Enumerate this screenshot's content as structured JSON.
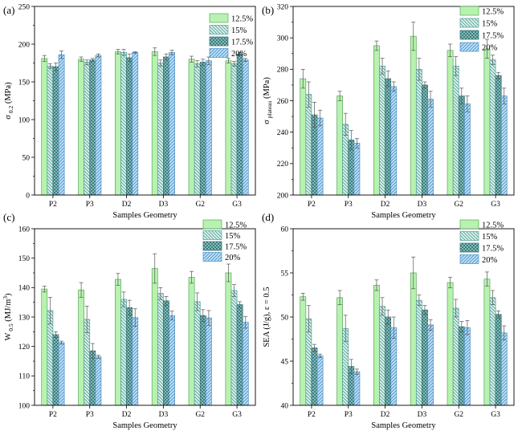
{
  "figure": {
    "fill_colors": [
      "#b8f2b0",
      "#dff2ea",
      "#9ccfcf",
      "#bfe2f8"
    ],
    "hatch_colors": [
      "#5aa65a",
      "#4f9f9a",
      "#2f6f6f",
      "#4c8fc5"
    ],
    "xlabel": "Samples Geometry",
    "legend_labels": [
      "12.5%",
      "15%",
      "17.5%",
      "20%"
    ]
  },
  "chart_data": [
    {
      "type": "bar",
      "panel": "(a)",
      "ylabel_main": "σ",
      "ylabel_sub": "0.2",
      "ylabel_tail": " (MPa)",
      "categories": [
        "P2",
        "P3",
        "D2",
        "D3",
        "G2",
        "G3"
      ],
      "ylim": [
        0,
        250
      ],
      "yticks": [
        0,
        50,
        100,
        150,
        200,
        250
      ],
      "legend_position": "top-right",
      "series": [
        {
          "name": "12.5%",
          "values": [
            181,
            180,
            190,
            190,
            180,
            178
          ],
          "errors": [
            4,
            3,
            3,
            5,
            4,
            3
          ]
        },
        {
          "name": "15%",
          "values": [
            171,
            176,
            189,
            175,
            174,
            174
          ],
          "errors": [
            3,
            3,
            4,
            4,
            4,
            3
          ]
        },
        {
          "name": "17.5%",
          "values": [
            170,
            179,
            182,
            183,
            176,
            187
          ],
          "errors": [
            5,
            2,
            5,
            4,
            4,
            2
          ]
        },
        {
          "name": "20%",
          "values": [
            186,
            185,
            189,
            189,
            178,
            179
          ],
          "errors": [
            5,
            2,
            1,
            3,
            5,
            2
          ]
        }
      ]
    },
    {
      "type": "bar",
      "panel": "(b)",
      "ylabel_main": "σ",
      "ylabel_sub": "plateau",
      "ylabel_tail": " (MPa)",
      "categories": [
        "P2",
        "P3",
        "D2",
        "D3",
        "G2",
        "G3"
      ],
      "ylim": [
        200,
        320
      ],
      "yticks": [
        200,
        220,
        240,
        260,
        280,
        300,
        320
      ],
      "legend_position": "top-right",
      "series": [
        {
          "name": "12.5%",
          "values": [
            274,
            263,
            295,
            301,
            292,
            293
          ],
          "errors": [
            6,
            3,
            3,
            9,
            4,
            6
          ]
        },
        {
          "name": "15%",
          "values": [
            264,
            245,
            282,
            280,
            282,
            286
          ],
          "errors": [
            8,
            7,
            5,
            7,
            6,
            3
          ]
        },
        {
          "name": "17.5%",
          "values": [
            251,
            235,
            274,
            270,
            263,
            276
          ],
          "errors": [
            8,
            6,
            5,
            2,
            5,
            2
          ]
        },
        {
          "name": "20%",
          "values": [
            249,
            233,
            269,
            261,
            258,
            263
          ],
          "errors": [
            5,
            3,
            3,
            5,
            5,
            5
          ]
        }
      ]
    },
    {
      "type": "bar",
      "panel": "(c)",
      "ylabel_main": "W",
      "ylabel_sub": "0.5",
      "ylabel_tail": " (MJ/m",
      "ylabel_sup": "3",
      "ylabel_end": ")",
      "categories": [
        "P2",
        "P3",
        "D2",
        "D3",
        "G2",
        "G3"
      ],
      "ylim": [
        100,
        160
      ],
      "yticks": [
        100,
        110,
        120,
        130,
        140,
        150,
        160
      ],
      "legend_position": "top-right",
      "series": [
        {
          "name": "12.5%",
          "values": [
            139.5,
            139.2,
            142.8,
            146.5,
            143.5,
            145
          ],
          "errors": [
            1,
            2.5,
            2,
            5,
            2,
            3
          ]
        },
        {
          "name": "15%",
          "values": [
            132.2,
            129.2,
            136,
            138,
            135.2,
            139
          ],
          "errors": [
            4.5,
            4.5,
            2.5,
            2,
            3,
            2
          ]
        },
        {
          "name": "17.5%",
          "values": [
            124,
            118.5,
            133.2,
            135.5,
            130.5,
            134.2
          ],
          "errors": [
            1,
            2.5,
            2.5,
            1.5,
            2,
            1
          ]
        },
        {
          "name": "20%",
          "values": [
            121.3,
            116.5,
            129.8,
            130.5,
            129.7,
            128.2
          ],
          "errors": [
            0.5,
            0.5,
            3,
            1.5,
            2.5,
            2
          ]
        }
      ]
    },
    {
      "type": "bar",
      "panel": "(d)",
      "ylabel_main": "SEA (J/g), ε = 0.5",
      "categories": [
        "P2",
        "P3",
        "D2",
        "D3",
        "G2",
        "G3"
      ],
      "ylim": [
        40,
        60
      ],
      "yticks": [
        40,
        45,
        50,
        55,
        60
      ],
      "legend_position": "top-right",
      "series": [
        {
          "name": "12.5%",
          "values": [
            52.3,
            52.2,
            53.6,
            55,
            53.9,
            54.3
          ],
          "errors": [
            0.4,
            0.8,
            0.6,
            1.8,
            0.6,
            0.8
          ]
        },
        {
          "name": "15%",
          "values": [
            49.8,
            48.7,
            51.2,
            51.9,
            51,
            52.2
          ],
          "errors": [
            1.5,
            1.5,
            1,
            0.6,
            1,
            0.8
          ]
        },
        {
          "name": "17.5%",
          "values": [
            46.5,
            44.4,
            50,
            50.8,
            48.9,
            50.3
          ],
          "errors": [
            0.4,
            0.8,
            0.8,
            0.5,
            0.6,
            0.4
          ]
        },
        {
          "name": "20%",
          "values": [
            45.6,
            43.8,
            48.8,
            49.1,
            48.8,
            48.2
          ],
          "errors": [
            0.2,
            0.3,
            1.2,
            0.6,
            0.8,
            0.8
          ]
        }
      ]
    }
  ]
}
